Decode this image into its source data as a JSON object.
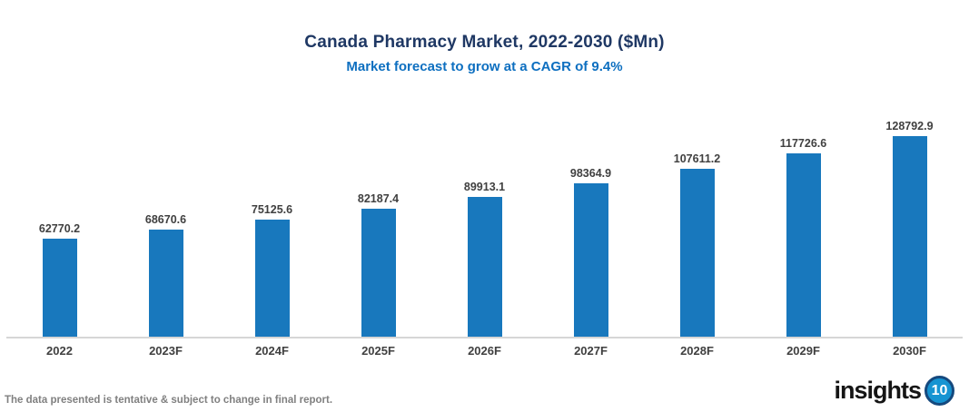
{
  "header": {
    "title": "Canada Pharmacy Market, 2022-2030 ($Mn)",
    "subtitle": "Market forecast to grow at a CAGR of 9.4%"
  },
  "chart_data": {
    "type": "bar",
    "title": "Canada Pharmacy Market, 2022-2030 ($Mn)",
    "subtitle": "Market forecast to grow at a CAGR of 9.4%",
    "categories": [
      "2022",
      "2023F",
      "2024F",
      "2025F",
      "2026F",
      "2027F",
      "2028F",
      "2029F",
      "2030F"
    ],
    "values": [
      62770.2,
      68670.6,
      75125.6,
      82187.4,
      89913.1,
      98364.9,
      107611.2,
      117726.6,
      128792.9
    ],
    "xlabel": "",
    "ylabel": "",
    "ylim": [
      0,
      135000
    ],
    "grid": false,
    "legend": false,
    "value_labels_shown": true,
    "bar_color": "#1878bd"
  },
  "footer": {
    "disclaimer": "The data presented is tentative & subject to change in final report.",
    "logo_text": "insights",
    "logo_badge": "10"
  },
  "colors": {
    "title": "#1f3864",
    "subtitle": "#0d6fc0",
    "bar": "#1878bd",
    "value_label": "#404040",
    "tick_label": "#404040",
    "axis_line": "#d6d6d6",
    "footer_text": "#808080",
    "logo_badge_fill": "#1694d2",
    "logo_badge_ring": "#15497e"
  }
}
